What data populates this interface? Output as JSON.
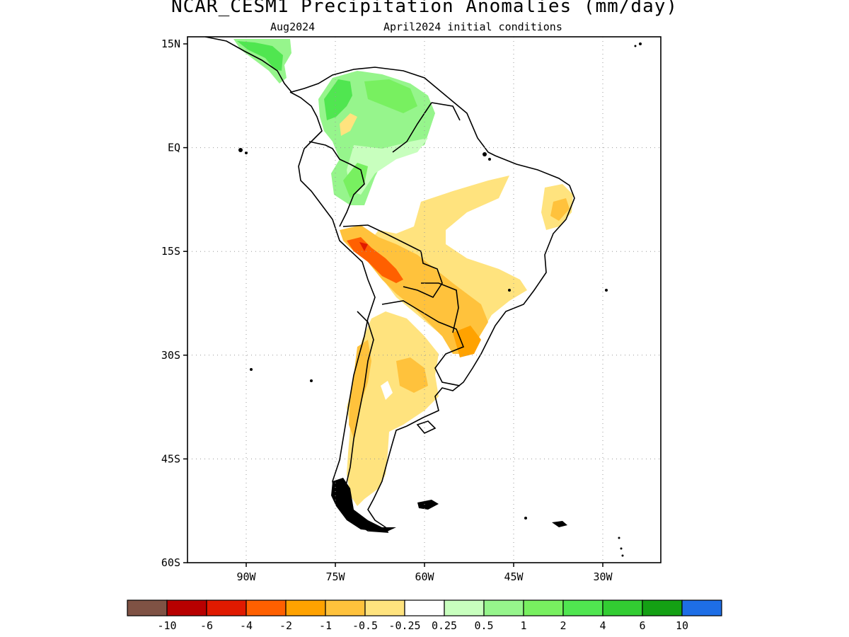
{
  "title": "NCAR_CESM1 Precipitation Anomalies (mm/day)",
  "subtitle_left": "Aug2024",
  "subtitle_right": "April2024 initial conditions",
  "lat_ticks": [
    {
      "label": "15N",
      "lat": 15
    },
    {
      "label": "EQ",
      "lat": 0
    },
    {
      "label": "15S",
      "lat": -15
    },
    {
      "label": "30S",
      "lat": -30
    },
    {
      "label": "45S",
      "lat": -45
    },
    {
      "label": "60S",
      "lat": -60
    }
  ],
  "lon_ticks": [
    {
      "label": "90W",
      "lon": -90
    },
    {
      "label": "75W",
      "lon": -75
    },
    {
      "label": "60W",
      "lon": -60
    },
    {
      "label": "45W",
      "lon": -45
    },
    {
      "label": "30W",
      "lon": -30
    }
  ],
  "map_extent": {
    "lon_min": -100,
    "lon_max": -20,
    "lat_min": -60,
    "lat_max": 15
  },
  "colorbar": {
    "colors": [
      "#7f5244",
      "#b80000",
      "#e01a00",
      "#ff6000",
      "#ffa200",
      "#ffc23c",
      "#ffe37e",
      "#ffffff",
      "#c8ffbe",
      "#96f58c",
      "#78f060",
      "#50e650",
      "#32cd32",
      "#14a014",
      "#1e6ee6"
    ],
    "labels": [
      "-10",
      "-6",
      "-4",
      "-2",
      "-1",
      "-0.5",
      "-0.25",
      "0.25",
      "0.5",
      "1",
      "2",
      "4",
      "6",
      "10"
    ]
  }
}
